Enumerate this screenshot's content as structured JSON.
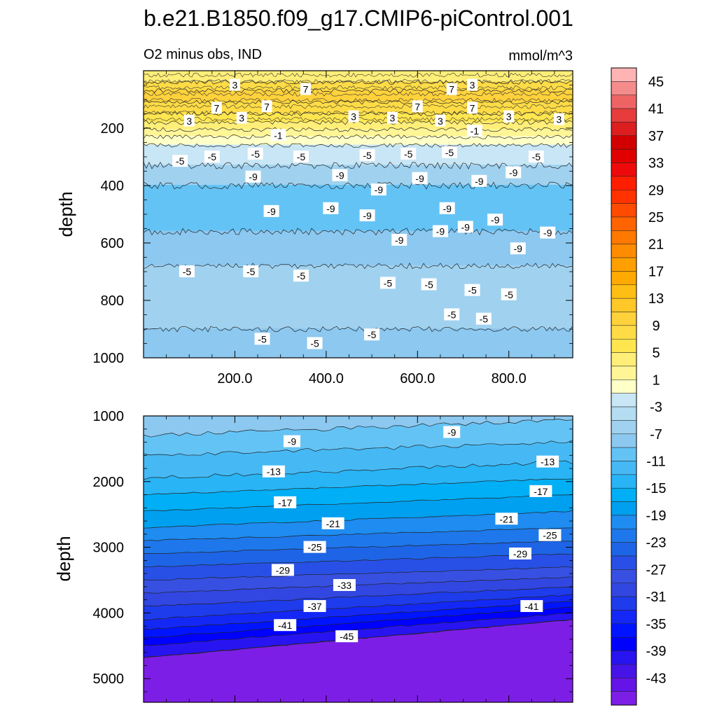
{
  "chart_data": {
    "title": "b.e21.B1850.f09_g17.CMIP6-piControl.001",
    "subtitle_left": "O2 minus obs, IND",
    "subtitle_right": "mmol/m^3",
    "type": "heatmap",
    "colorbar": {
      "tick_labels": [
        "45",
        "41",
        "37",
        "33",
        "29",
        "25",
        "21",
        "17",
        "13",
        "9",
        "5",
        "1",
        "-3",
        "-7",
        "-11",
        "-15",
        "-19",
        "-23",
        "-27",
        "-31",
        "-35",
        "-39",
        "-43"
      ],
      "levels_high_to_low": [
        47,
        45,
        43,
        41,
        39,
        37,
        35,
        33,
        31,
        29,
        27,
        25,
        23,
        21,
        19,
        17,
        15,
        13,
        11,
        9,
        7,
        5,
        3,
        1,
        -1,
        -3,
        -5,
        -7,
        -9,
        -11,
        -13,
        -15,
        -17,
        -19,
        -21,
        -23,
        -25,
        -27,
        -29,
        -31,
        -33,
        -35,
        -37,
        -39,
        -41,
        -43,
        -45
      ],
      "colors": [
        "#ffb4b4",
        "#f58c8c",
        "#ee6464",
        "#e63c3c",
        "#dc1e1e",
        "#d20000",
        "#e00000",
        "#ee0a0a",
        "#ff1e00",
        "#ff3200",
        "#ff4b00",
        "#ff6400",
        "#ff7800",
        "#ff8c00",
        "#ffa000",
        "#ffaa00",
        "#ffbe14",
        "#ffc828",
        "#ffd23c",
        "#ffdc46",
        "#ffe650",
        "#ffee78",
        "#fff596",
        "#ffffc8",
        "#c8e6f5",
        "#b4dcf2",
        "#a0d2f0",
        "#8cc8f0",
        "#64c3f5",
        "#46b9f5",
        "#28b4f5",
        "#00aff5",
        "#00a0f0",
        "#1e8cf0",
        "#1e78eb",
        "#1e64e6",
        "#2850e6",
        "#3750e1",
        "#3246e1",
        "#1e3ceb",
        "#1428f5",
        "#0014ff",
        "#0000ff",
        "#2814f0",
        "#4614e6",
        "#6414e6",
        "#7d1ee6"
      ]
    },
    "panels": [
      {
        "name": "upper",
        "xlabel": "",
        "ylabel": "depth",
        "xlim": [
          0,
          940
        ],
        "ylim": [
          1000,
          0
        ],
        "xticks": [
          200,
          400,
          600,
          800
        ],
        "xtick_labels": [
          "200.0",
          "400.0",
          "600.0",
          "800.0"
        ],
        "yticks": [
          200,
          400,
          600,
          800,
          1000
        ],
        "ytick_labels": [
          "200",
          "400",
          "600",
          "800",
          "1000"
        ],
        "bands": [
          {
            "top": 0,
            "bottom": 40,
            "level": 5
          },
          {
            "top": 40,
            "bottom": 70,
            "level": 9
          },
          {
            "top": 70,
            "bottom": 110,
            "level": 11
          },
          {
            "top": 110,
            "bottom": 150,
            "level": 9
          },
          {
            "top": 150,
            "bottom": 180,
            "level": 7
          },
          {
            "top": 180,
            "bottom": 205,
            "level": 5
          },
          {
            "top": 205,
            "bottom": 230,
            "level": 3
          },
          {
            "top": 230,
            "bottom": 260,
            "level": 1
          },
          {
            "top": 260,
            "bottom": 330,
            "level": -1
          },
          {
            "top": 330,
            "bottom": 400,
            "level": -5
          },
          {
            "top": 400,
            "bottom": 560,
            "level": -9
          },
          {
            "top": 560,
            "bottom": 680,
            "level": -7
          },
          {
            "top": 680,
            "bottom": 900,
            "level": -5
          },
          {
            "top": 900,
            "bottom": 1000,
            "level": -7
          }
        ],
        "contour_labels": [
          {
            "x": 200,
            "y": 50,
            "text": "3"
          },
          {
            "x": 355,
            "y": 65,
            "text": "7"
          },
          {
            "x": 675,
            "y": 65,
            "text": "7"
          },
          {
            "x": 720,
            "y": 50,
            "text": "3"
          },
          {
            "x": 160,
            "y": 130,
            "text": "7"
          },
          {
            "x": 270,
            "y": 125,
            "text": "7"
          },
          {
            "x": 600,
            "y": 125,
            "text": "7"
          },
          {
            "x": 720,
            "y": 130,
            "text": "7"
          },
          {
            "x": 100,
            "y": 175,
            "text": "3"
          },
          {
            "x": 215,
            "y": 165,
            "text": "3"
          },
          {
            "x": 460,
            "y": 160,
            "text": "3"
          },
          {
            "x": 545,
            "y": 165,
            "text": "3"
          },
          {
            "x": 650,
            "y": 175,
            "text": "3"
          },
          {
            "x": 800,
            "y": 160,
            "text": "3"
          },
          {
            "x": 910,
            "y": 170,
            "text": "3"
          },
          {
            "x": 295,
            "y": 225,
            "text": "-1"
          },
          {
            "x": 725,
            "y": 210,
            "text": "-1"
          },
          {
            "x": 80,
            "y": 315,
            "text": "-5"
          },
          {
            "x": 150,
            "y": 300,
            "text": "-5"
          },
          {
            "x": 245,
            "y": 290,
            "text": "-5"
          },
          {
            "x": 345,
            "y": 300,
            "text": "-5"
          },
          {
            "x": 490,
            "y": 295,
            "text": "-5"
          },
          {
            "x": 580,
            "y": 290,
            "text": "-5"
          },
          {
            "x": 670,
            "y": 285,
            "text": "-5"
          },
          {
            "x": 860,
            "y": 300,
            "text": "-5"
          },
          {
            "x": 240,
            "y": 370,
            "text": "-9"
          },
          {
            "x": 430,
            "y": 365,
            "text": "-9"
          },
          {
            "x": 515,
            "y": 415,
            "text": "-9"
          },
          {
            "x": 605,
            "y": 375,
            "text": "-9"
          },
          {
            "x": 735,
            "y": 385,
            "text": "-9"
          },
          {
            "x": 810,
            "y": 355,
            "text": "-9"
          },
          {
            "x": 280,
            "y": 490,
            "text": "-9"
          },
          {
            "x": 410,
            "y": 480,
            "text": "-9"
          },
          {
            "x": 490,
            "y": 505,
            "text": "-9"
          },
          {
            "x": 665,
            "y": 480,
            "text": "-9"
          },
          {
            "x": 650,
            "y": 560,
            "text": "-9"
          },
          {
            "x": 705,
            "y": 545,
            "text": "-9"
          },
          {
            "x": 770,
            "y": 520,
            "text": "-9"
          },
          {
            "x": 560,
            "y": 590,
            "text": "-9"
          },
          {
            "x": 820,
            "y": 620,
            "text": "-9"
          },
          {
            "x": 885,
            "y": 565,
            "text": "-9"
          },
          {
            "x": 95,
            "y": 700,
            "text": "-5"
          },
          {
            "x": 235,
            "y": 700,
            "text": "-5"
          },
          {
            "x": 345,
            "y": 715,
            "text": "-5"
          },
          {
            "x": 535,
            "y": 740,
            "text": "-5"
          },
          {
            "x": 625,
            "y": 745,
            "text": "-5"
          },
          {
            "x": 720,
            "y": 765,
            "text": "-5"
          },
          {
            "x": 800,
            "y": 780,
            "text": "-5"
          },
          {
            "x": 675,
            "y": 850,
            "text": "-5"
          },
          {
            "x": 745,
            "y": 865,
            "text": "-5"
          },
          {
            "x": 260,
            "y": 935,
            "text": "-5"
          },
          {
            "x": 375,
            "y": 950,
            "text": "-5"
          },
          {
            "x": 500,
            "y": 920,
            "text": "-5"
          }
        ]
      },
      {
        "name": "lower",
        "xlabel": "",
        "ylabel": "depth",
        "xlim": [
          0,
          940
        ],
        "ylim": [
          5360,
          1000
        ],
        "yticks": [
          1000,
          2000,
          3000,
          4000,
          5000
        ],
        "ytick_labels": [
          "1000",
          "2000",
          "3000",
          "4000",
          "5000"
        ],
        "boundaries": [
          {
            "level": -9,
            "left": 1300,
            "right": 1060
          },
          {
            "level": -11,
            "left": 1600,
            "right": 1400
          },
          {
            "level": -13,
            "left": 1950,
            "right": 1700
          },
          {
            "level": -15,
            "left": 2200,
            "right": 1950
          },
          {
            "level": -17,
            "left": 2450,
            "right": 2200
          },
          {
            "level": -19,
            "left": 2700,
            "right": 2450
          },
          {
            "level": -21,
            "left": 2900,
            "right": 2700
          },
          {
            "level": -23,
            "left": 3100,
            "right": 2900
          },
          {
            "level": -25,
            "left": 3300,
            "right": 3100
          },
          {
            "level": -27,
            "left": 3500,
            "right": 3300
          },
          {
            "level": -29,
            "left": 3700,
            "right": 3450
          },
          {
            "level": -31,
            "left": 3900,
            "right": 3600
          },
          {
            "level": -33,
            "left": 4100,
            "right": 3720
          },
          {
            "level": -35,
            "left": 4250,
            "right": 3820
          },
          {
            "level": -37,
            "left": 4380,
            "right": 3910
          },
          {
            "level": -39,
            "left": 4500,
            "right": 4000
          },
          {
            "level": -41,
            "left": 4680,
            "right": 4100
          },
          {
            "level": -43,
            "left": 5360,
            "right": 5360
          }
        ],
        "contour_labels": [
          {
            "x": 325,
            "y": 1390,
            "text": "-9"
          },
          {
            "x": 675,
            "y": 1250,
            "text": "-9"
          },
          {
            "x": 285,
            "y": 1850,
            "text": "-13"
          },
          {
            "x": 885,
            "y": 1700,
            "text": "-13"
          },
          {
            "x": 310,
            "y": 2320,
            "text": "-17"
          },
          {
            "x": 870,
            "y": 2150,
            "text": "-17"
          },
          {
            "x": 415,
            "y": 2640,
            "text": "-21"
          },
          {
            "x": 795,
            "y": 2570,
            "text": "-21"
          },
          {
            "x": 375,
            "y": 3000,
            "text": "-25"
          },
          {
            "x": 890,
            "y": 2820,
            "text": "-25"
          },
          {
            "x": 305,
            "y": 3350,
            "text": "-29"
          },
          {
            "x": 825,
            "y": 3100,
            "text": "-29"
          },
          {
            "x": 440,
            "y": 3580,
            "text": "-33"
          },
          {
            "x": 375,
            "y": 3900,
            "text": "-37"
          },
          {
            "x": 850,
            "y": 3900,
            "text": "-41"
          },
          {
            "x": 310,
            "y": 4190,
            "text": "-41"
          },
          {
            "x": 445,
            "y": 4360,
            "text": "-45"
          }
        ]
      }
    ]
  }
}
